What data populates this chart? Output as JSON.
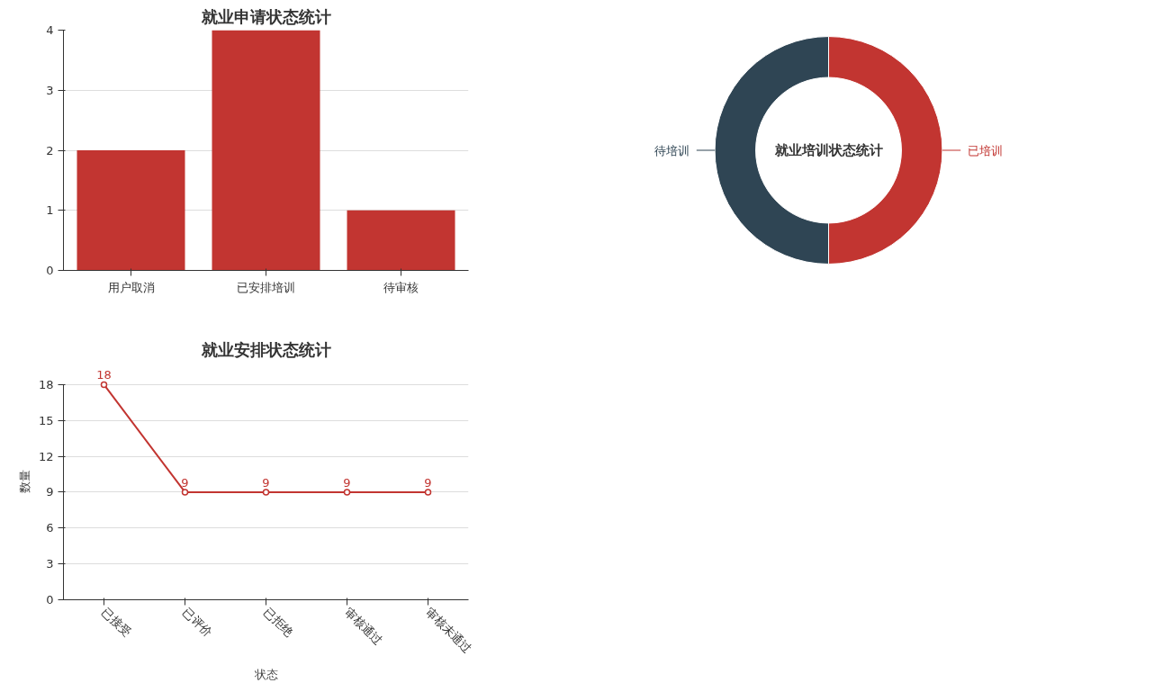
{
  "chart_data": [
    {
      "type": "bar",
      "title": "就业申请状态统计",
      "categories": [
        "用户取消",
        "已安排培训",
        "待审核"
      ],
      "values": [
        2,
        4,
        1
      ],
      "color": "#c23531",
      "ylim": [
        0,
        4
      ],
      "yticks": [
        0,
        1,
        2,
        3,
        4
      ],
      "grid": "y"
    },
    {
      "type": "donut",
      "title": "就业培训状态统计",
      "categories": [
        "已培训",
        "待培训"
      ],
      "values": [
        50,
        50
      ],
      "colors": [
        "#c23531",
        "#2f4554"
      ]
    },
    {
      "type": "line",
      "title": "就业安排状态统计",
      "xlabel": "状态",
      "ylabel": "数量",
      "categories": [
        "已接受",
        "已评价",
        "已拒绝",
        "审核通过",
        "审核未通过"
      ],
      "series": [
        {
          "color": "#c23531",
          "values": [
            18,
            9,
            9,
            9,
            9
          ]
        }
      ],
      "ylim": [
        0,
        18
      ],
      "yticks": [
        0,
        3,
        6,
        9,
        12,
        15,
        18
      ],
      "grid": "y",
      "marker": "circle",
      "data_labels": true
    }
  ]
}
